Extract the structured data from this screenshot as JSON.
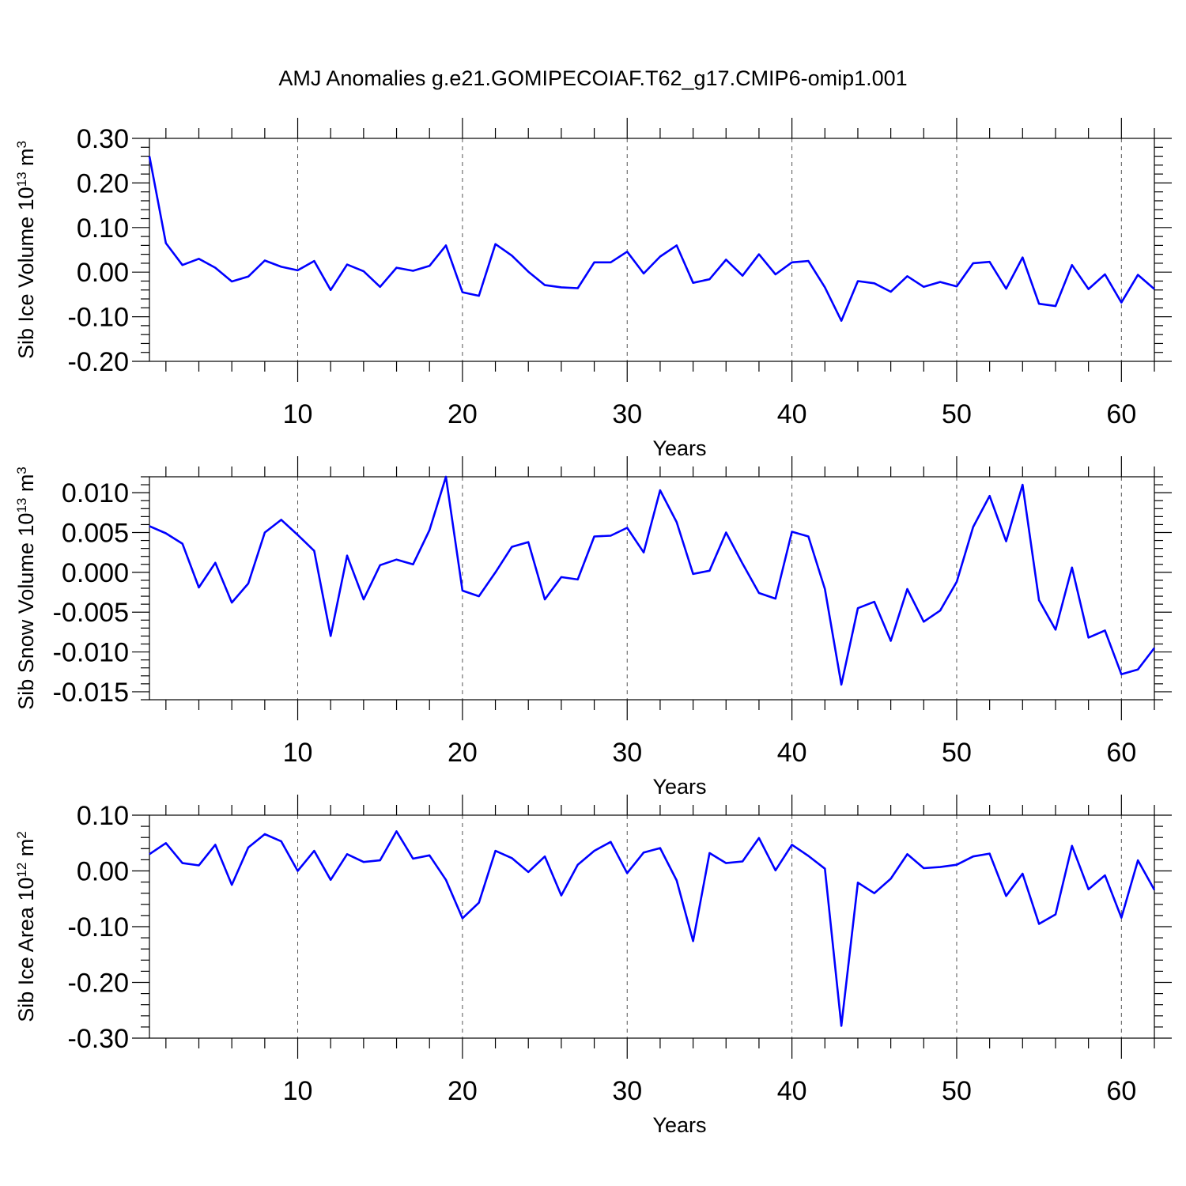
{
  "figure": {
    "title": "AMJ Anomalies g.e21.GOMIPECOIAF.T62_g17.CMIP6-omip1.001"
  },
  "colors": {
    "line": "#0000ff",
    "axis": "#000000",
    "grid": "#555555"
  },
  "chart_data": [
    {
      "type": "line",
      "name": "ice-volume",
      "title": "",
      "xlabel": "Years",
      "ylabel_main": "Sib Ice Volume 10",
      "ylabel_exp": "13",
      "ylabel_unit": " m",
      "ylabel_unit_exp": "3",
      "xlim": [
        1,
        62
      ],
      "ylim": [
        -0.2,
        0.3
      ],
      "xticks": [
        10,
        20,
        30,
        40,
        50,
        60
      ],
      "yticks": [
        -0.2,
        -0.1,
        0.0,
        0.1,
        0.2,
        0.3
      ],
      "ytick_labels": [
        "-0.20",
        "-0.10",
        "0.00",
        "0.10",
        "0.20",
        "0.30"
      ],
      "grid": "vertical-dashed",
      "series": [
        {
          "name": "Sib Ice Volume",
          "x": [
            1,
            2,
            3,
            4,
            5,
            6,
            7,
            8,
            9,
            10,
            11,
            12,
            13,
            14,
            15,
            16,
            17,
            18,
            19,
            20,
            21,
            22,
            23,
            24,
            25,
            26,
            27,
            28,
            29,
            30,
            31,
            32,
            33,
            34,
            35,
            36,
            37,
            38,
            39,
            40,
            41,
            42,
            43,
            44,
            45,
            46,
            47,
            48,
            49,
            50,
            51,
            52,
            53,
            54,
            55,
            56,
            57,
            58,
            59,
            60,
            61,
            62
          ],
          "values": [
            0.26,
            0.065,
            0.016,
            0.03,
            0.01,
            -0.021,
            -0.01,
            0.026,
            0.012,
            0.004,
            0.025,
            -0.04,
            0.017,
            0.002,
            -0.033,
            0.01,
            0.003,
            0.014,
            0.06,
            -0.045,
            -0.053,
            0.063,
            0.037,
            0.001,
            -0.029,
            -0.034,
            -0.036,
            0.022,
            0.022,
            0.046,
            -0.003,
            0.035,
            0.06,
            -0.024,
            -0.016,
            0.028,
            -0.008,
            0.04,
            -0.005,
            0.022,
            0.025,
            -0.034,
            -0.109,
            -0.02,
            -0.025,
            -0.044,
            -0.009,
            -0.033,
            -0.022,
            -0.032,
            0.02,
            0.023,
            -0.037,
            0.033,
            -0.071,
            -0.076,
            0.016,
            -0.038,
            -0.005,
            -0.068,
            -0.006,
            -0.038
          ]
        }
      ]
    },
    {
      "type": "line",
      "name": "snow-volume",
      "title": "",
      "xlabel": "Years",
      "ylabel_main": "Sib Snow Volume 10",
      "ylabel_exp": "13",
      "ylabel_unit": " m",
      "ylabel_unit_exp": "3",
      "xlim": [
        1,
        62
      ],
      "ylim": [
        -0.016,
        0.012
      ],
      "xticks": [
        10,
        20,
        30,
        40,
        50,
        60
      ],
      "yticks": [
        -0.015,
        -0.01,
        -0.005,
        0.0,
        0.005,
        0.01
      ],
      "ytick_labels": [
        "-0.015",
        "-0.010",
        "-0.005",
        "0.000",
        "0.005",
        "0.010"
      ],
      "grid": "vertical-dashed",
      "series": [
        {
          "name": "Sib Snow Volume",
          "x": [
            1,
            2,
            3,
            4,
            5,
            6,
            7,
            8,
            9,
            10,
            11,
            12,
            13,
            14,
            15,
            16,
            17,
            18,
            19,
            20,
            21,
            22,
            23,
            24,
            25,
            26,
            27,
            28,
            29,
            30,
            31,
            32,
            33,
            34,
            35,
            36,
            37,
            38,
            39,
            40,
            41,
            42,
            43,
            44,
            45,
            46,
            47,
            48,
            49,
            50,
            51,
            52,
            53,
            54,
            55,
            56,
            57,
            58,
            59,
            60,
            61,
            62
          ],
          "values": [
            0.0058,
            0.0049,
            0.0036,
            -0.0019,
            0.0012,
            -0.0038,
            -0.0014,
            0.005,
            0.0066,
            0.0047,
            0.0027,
            -0.008,
            0.0021,
            -0.0034,
            0.0009,
            0.0016,
            0.001,
            0.0053,
            0.012,
            -0.0023,
            -0.003,
            0.0,
            0.0032,
            0.0038,
            -0.0034,
            -0.0006,
            -0.0009,
            0.0045,
            0.0046,
            0.0056,
            0.0025,
            0.0103,
            0.0063,
            -0.0002,
            0.0002,
            0.005,
            0.0011,
            -0.0026,
            -0.0033,
            0.0051,
            0.0045,
            -0.0021,
            -0.0141,
            -0.0045,
            -0.0037,
            -0.0086,
            -0.0021,
            -0.0062,
            -0.0048,
            -0.0012,
            0.0057,
            0.0096,
            0.0039,
            0.011,
            -0.0035,
            -0.0072,
            0.0006,
            -0.0082,
            -0.0073,
            -0.0128,
            -0.0122,
            -0.0095
          ]
        }
      ]
    },
    {
      "type": "line",
      "name": "ice-area",
      "title": "",
      "xlabel": "Years",
      "ylabel_main": "Sib Ice Area 10",
      "ylabel_exp": "12",
      "ylabel_unit": " m",
      "ylabel_unit_exp": "2",
      "xlim": [
        1,
        62
      ],
      "ylim": [
        -0.3,
        0.1
      ],
      "xticks": [
        10,
        20,
        30,
        40,
        50,
        60
      ],
      "yticks": [
        -0.3,
        -0.2,
        -0.1,
        0.0,
        0.1
      ],
      "ytick_labels": [
        "-0.30",
        "-0.20",
        "-0.10",
        "0.00",
        "0.10"
      ],
      "grid": "vertical-dashed",
      "series": [
        {
          "name": "Sib Ice Area",
          "x": [
            1,
            2,
            3,
            4,
            5,
            6,
            7,
            8,
            9,
            10,
            11,
            12,
            13,
            14,
            15,
            16,
            17,
            18,
            19,
            20,
            21,
            22,
            23,
            24,
            25,
            26,
            27,
            28,
            29,
            30,
            31,
            32,
            33,
            34,
            35,
            36,
            37,
            38,
            39,
            40,
            41,
            42,
            43,
            44,
            45,
            46,
            47,
            48,
            49,
            50,
            51,
            52,
            53,
            54,
            55,
            56,
            57,
            58,
            59,
            60,
            61,
            62
          ],
          "values": [
            0.03,
            0.05,
            0.014,
            0.01,
            0.047,
            -0.025,
            0.042,
            0.066,
            0.053,
            0.0,
            0.036,
            -0.016,
            0.03,
            0.016,
            0.019,
            0.071,
            0.022,
            0.028,
            -0.016,
            -0.085,
            -0.057,
            0.036,
            0.023,
            -0.002,
            0.026,
            -0.044,
            0.011,
            0.036,
            0.052,
            -0.004,
            0.033,
            0.041,
            -0.017,
            -0.126,
            0.032,
            0.014,
            0.017,
            0.059,
            0.001,
            0.047,
            0.027,
            0.004,
            -0.278,
            -0.021,
            -0.04,
            -0.014,
            0.03,
            0.005,
            0.007,
            0.011,
            0.026,
            0.031,
            -0.045,
            -0.005,
            -0.095,
            -0.078,
            0.045,
            -0.033,
            -0.008,
            -0.084,
            0.019,
            -0.034
          ]
        }
      ]
    }
  ]
}
